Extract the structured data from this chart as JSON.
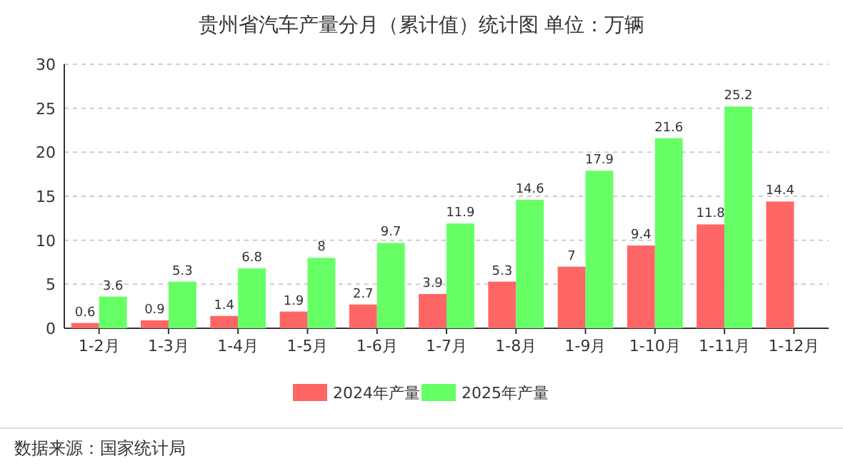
{
  "chart_data": {
    "type": "bar",
    "title": "贵州省汽车产量分月（累计值）统计图 单位：万辆",
    "categories": [
      "1-2月",
      "1-3月",
      "1-4月",
      "1-5月",
      "1-6月",
      "1-7月",
      "1-8月",
      "1-9月",
      "1-10月",
      "1-11月",
      "1-12月"
    ],
    "series": [
      {
        "name": "2024年产量",
        "color": "#ff6666",
        "values": [
          0.6,
          0.9,
          1.4,
          1.9,
          2.7,
          3.9,
          5.3,
          7,
          9.4,
          11.8,
          14.4
        ]
      },
      {
        "name": "2025年产量",
        "color": "#66ff66",
        "values": [
          3.6,
          5.3,
          6.8,
          8,
          9.7,
          11.9,
          14.6,
          17.9,
          21.6,
          25.2,
          null
        ]
      }
    ],
    "ylim": [
      0,
      30
    ],
    "yticks": [
      0,
      5,
      10,
      15,
      20,
      25,
      30
    ],
    "grid": "y",
    "legend": "bottom",
    "data_labels": true,
    "annotations": [
      "数据来源：国家统计局"
    ]
  }
}
